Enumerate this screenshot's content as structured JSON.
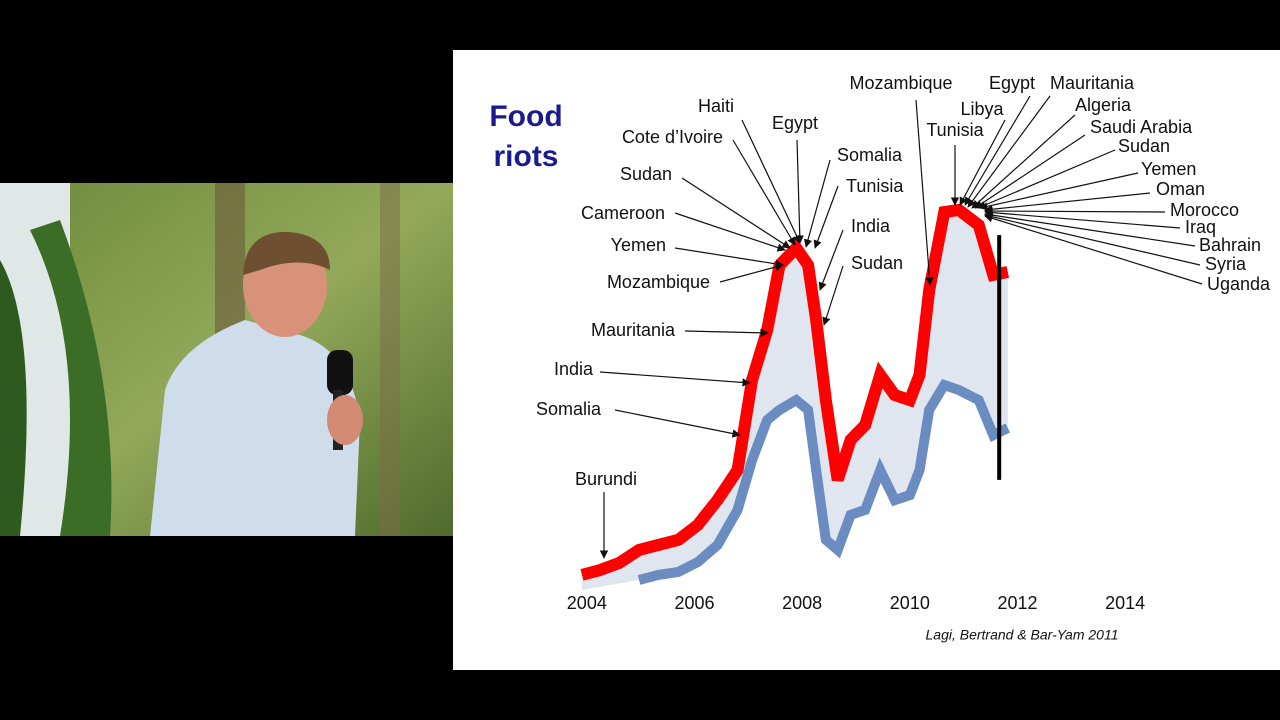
{
  "chart_data": {
    "type": "line",
    "title": "Food riots",
    "credit": "Lagi, Bertrand & Bar-Yam 2011",
    "x": [
      2003.91,
      2004.24,
      2004.6,
      2004.97,
      2005.33,
      2005.7,
      2006.06,
      2006.43,
      2006.8,
      2007.07,
      2007.35,
      2007.58,
      2007.89,
      2008.11,
      2008.26,
      2008.44,
      2008.66,
      2008.9,
      2009.17,
      2009.45,
      2009.72,
      2010.0,
      2010.18,
      2010.36,
      2010.64,
      2010.91,
      2011.28,
      2011.55,
      2011.82
    ],
    "series": [
      {
        "color": "#ff0000",
        "values": [
          115.1,
          116.7,
          119.1,
          123.5,
          125.2,
          126.9,
          131.9,
          140.4,
          150.4,
          180.8,
          197.6,
          219.5,
          225.3,
          219.5,
          201,
          174,
          147.1,
          160.6,
          165.6,
          182.5,
          175.7,
          174,
          182.5,
          211.1,
          237.4,
          238.1,
          233,
          216.2,
          217.2
        ]
      },
      {
        "color": "#6a8cc0",
        "values": [
          null,
          null,
          null,
          113.4,
          115.1,
          116.1,
          119.4,
          125.2,
          137,
          153.8,
          167.3,
          170.7,
          174,
          170.7,
          150.4,
          126.9,
          123.5,
          135.3,
          137,
          150.4,
          140.3,
          142,
          150.4,
          170.7,
          179.1,
          177.4,
          174,
          162.2,
          164.6
        ]
      }
    ],
    "fill_color": "#dfe6f0",
    "xlim": [
      2003.8,
      2014.2
    ],
    "xticks": [
      2004,
      2006,
      2008,
      2010,
      2012,
      2014
    ],
    "ylim": [
      110,
      260
    ],
    "marker_line": {
      "x": 2011.66,
      "from": 147.1,
      "to": 229.6,
      "color": "#000000"
    },
    "annotations": [
      "Burundi",
      "Somalia",
      "India",
      "Mauritania",
      "Mozambique",
      "Yemen",
      "Cameroon",
      "Sudan",
      "Cote d’Ivoire",
      "Haiti",
      "Egypt",
      "Somalia",
      "Tunisia",
      "India",
      "Sudan",
      "Mozambique",
      "Tunisia",
      "Libya",
      "Egypt",
      "Mauritania",
      "Algeria",
      "Saudi Arabia",
      "Sudan",
      "Yemen",
      "Oman",
      "Morocco",
      "Iraq",
      "Bahrain",
      "Syria",
      "Uganda"
    ]
  }
}
